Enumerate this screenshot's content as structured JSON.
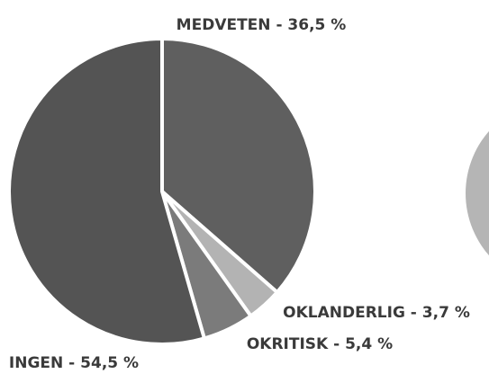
{
  "chart_data": {
    "type": "pie",
    "values": [
      36.5,
      3.7,
      5.4,
      54.5
    ],
    "value_labels": [
      "MEDVETEN - 36,5 %",
      "OKLANDERLIG - 3,7 %",
      "OKRITISK - 5,4 %",
      "INGEN - 54,5 %"
    ],
    "colors": [
      "#5f5f5f",
      "#b3b3b3",
      "#7b7b7b",
      "#545454"
    ]
  }
}
